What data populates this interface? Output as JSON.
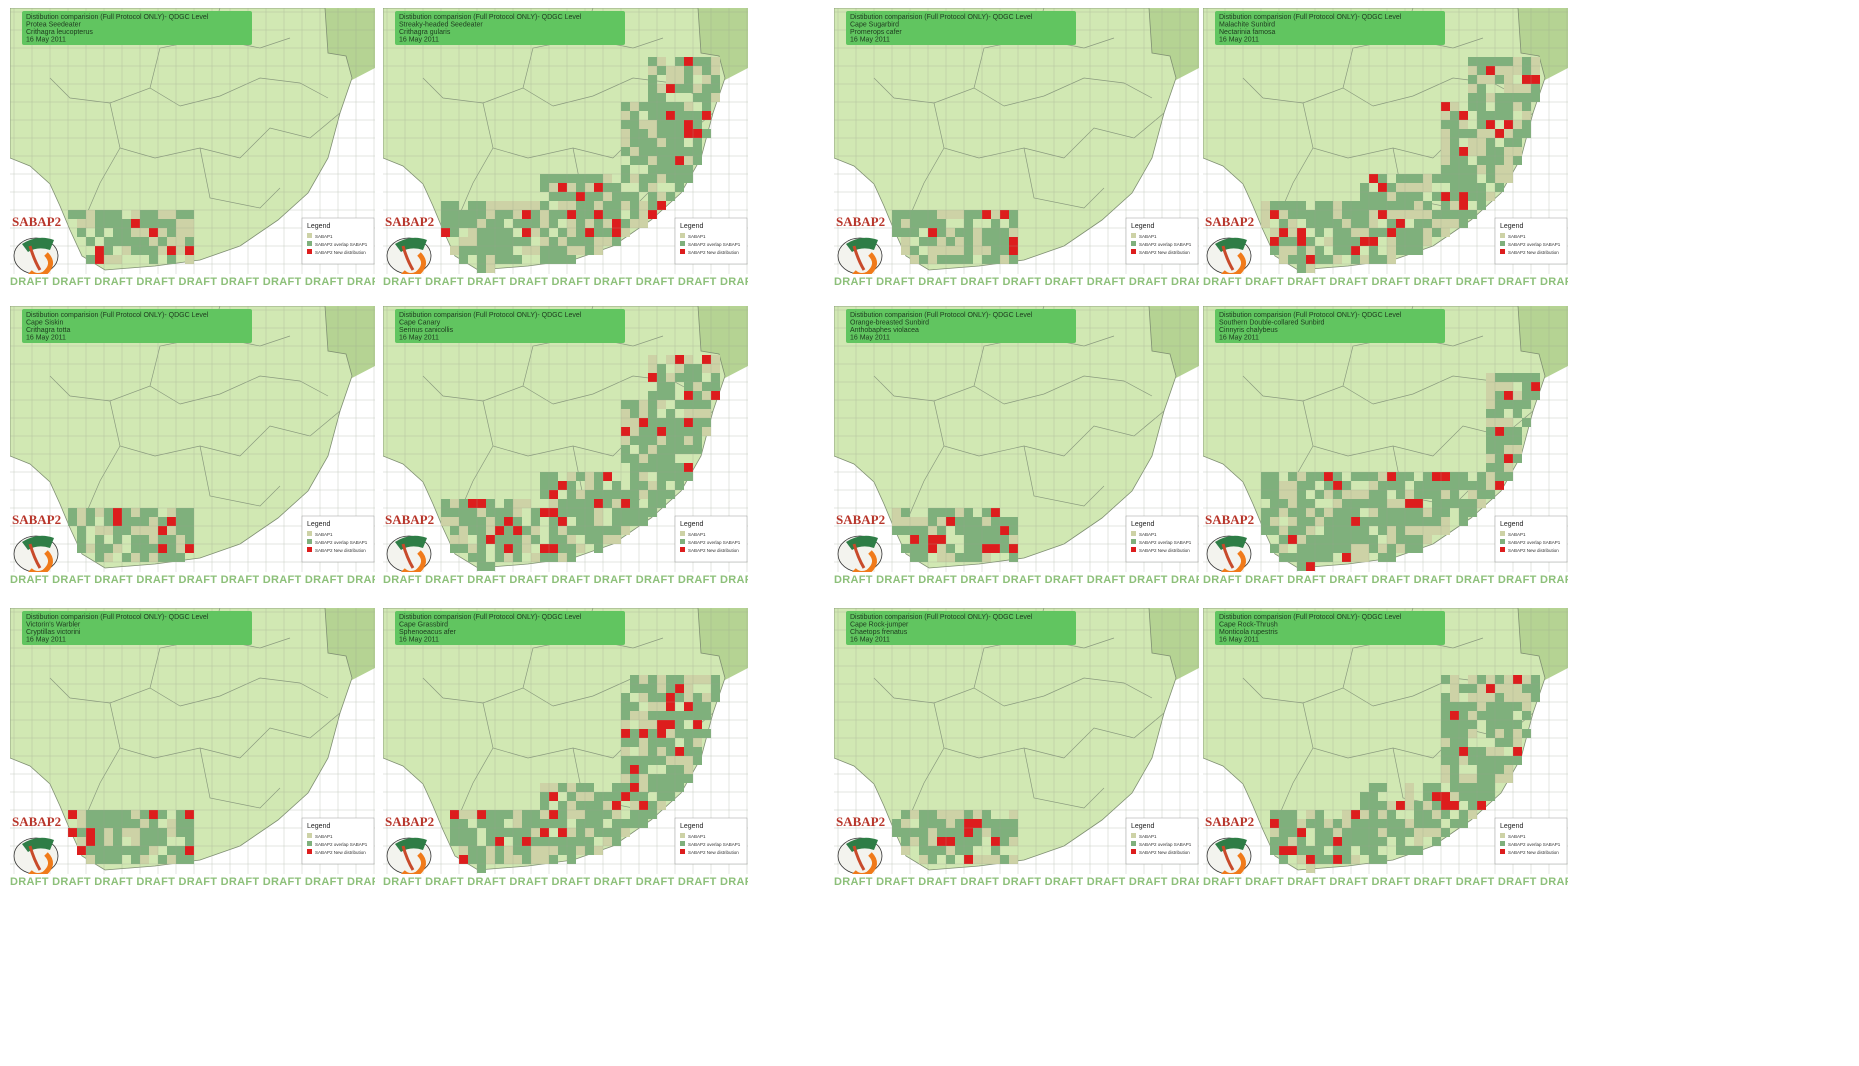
{
  "panels": [
    {
      "title": "Distibution comparision (Full Protocol ONLY)- QDGC Level",
      "common_name": "Protea Seedeater",
      "scientific_name": "Crithagra leucopterus",
      "date": "16 May 2011",
      "range": "sw"
    },
    {
      "title": "Distibution comparision (Full Protocol ONLY)- QDGC Level",
      "common_name": "Streaky-headed Seedeater",
      "scientific_name": "Crithagra gularis",
      "date": "16 May 2011",
      "range": "wide"
    },
    {
      "title": "Distibution comparision (Full Protocol ONLY)- QDGC Level",
      "common_name": "Cape Sugarbird",
      "scientific_name": "Promerops cafer",
      "date": "16 May 2011",
      "range": "sw"
    },
    {
      "title": "Distibution comparision (Full Protocol ONLY)- QDGC Level",
      "common_name": "Malachite Sunbird",
      "scientific_name": "Nectarinia famosa",
      "date": "16 May 2011",
      "range": "wide"
    },
    {
      "title": "Distibution comparision (Full Protocol ONLY)- QDGC Level",
      "common_name": "Cape Siskin",
      "scientific_name": "Crithagra totta",
      "date": "16 May 2011",
      "range": "sw"
    },
    {
      "title": "Distibution comparision (Full Protocol ONLY)- QDGC Level",
      "common_name": "Cape Canary",
      "scientific_name": "Serinus canicollis",
      "date": "16 May 2011",
      "range": "wide"
    },
    {
      "title": "Distibution comparision (Full Protocol ONLY)- QDGC Level",
      "common_name": "Orange-breasted Sunbird",
      "scientific_name": "Anthobaphes violacea",
      "date": "16 May 2011",
      "range": "sw"
    },
    {
      "title": "Distibution comparision (Full Protocol ONLY)- QDGC Level",
      "common_name": "Southern Double-collared Sunbird",
      "scientific_name": "Cinnyris chalybeus",
      "date": "16 May 2011",
      "range": "south"
    },
    {
      "title": "Distibution comparision (Full Protocol ONLY)- QDGC Level",
      "common_name": "Victorin's Warbler",
      "scientific_name": "Cryptillas victorini",
      "date": "16 May 2011",
      "range": "sw"
    },
    {
      "title": "Distibution comparision (Full Protocol ONLY)- QDGC Level",
      "common_name": "Cape Grassbird",
      "scientific_name": "Sphenoeacus afer",
      "date": "16 May 2011",
      "range": "east"
    },
    {
      "title": "Distibution comparision (Full Protocol ONLY)- QDGC Level",
      "common_name": "Cape Rock-jumper",
      "scientific_name": "Chaetops frenatus",
      "date": "16 May 2011",
      "range": "sw"
    },
    {
      "title": "Distibution comparision (Full Protocol ONLY)- QDGC Level",
      "common_name": "Cape Rock-Thrush",
      "scientific_name": "Monticola rupestris",
      "date": "16 May 2011",
      "range": "east"
    }
  ],
  "legend": {
    "title": "Legend",
    "items": [
      {
        "label": "SABAP1",
        "color": "#cdd2a6"
      },
      {
        "label": "SABAP2 overlap SABAP1",
        "color": "#7fb07c"
      },
      {
        "label": "SABAP2 New distribution",
        "color": "#dd1d1d"
      }
    ]
  },
  "logo_text": "SABAP2",
  "watermark": "DRAFT DRAFT DRAFT DRAFT DRAFT DRAFT DRAFT DRAFT DRAFT DRAFT DRAFT DRAFT",
  "colors": {
    "land": "#d1e8b3",
    "outside": "#b5d393",
    "sea": "#ffffff",
    "grid": "#9aa38e",
    "title_box": "#61c560",
    "logo_red": "#b8352a",
    "watermark": "#8dc07a"
  }
}
